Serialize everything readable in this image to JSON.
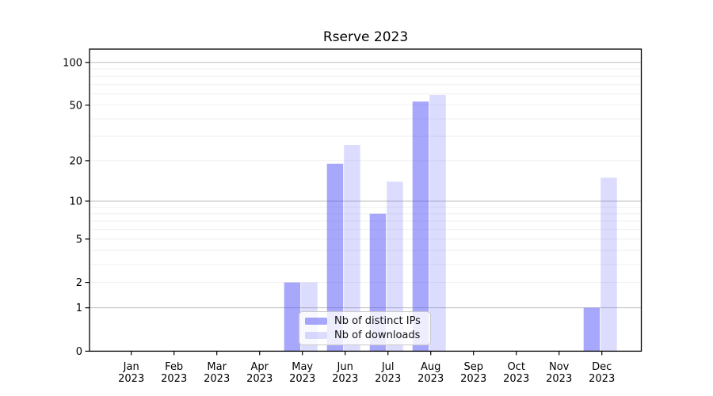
{
  "page": {
    "background": "#ffffff"
  },
  "chart_data": {
    "type": "bar",
    "title": "Rserve 2023",
    "categories": [
      "Jan",
      "Feb",
      "Mar",
      "Apr",
      "May",
      "Jun",
      "Jul",
      "Aug",
      "Sep",
      "Oct",
      "Nov",
      "Dec"
    ],
    "x_year_label": "2023",
    "series": [
      {
        "name": "Nb of distinct IPs",
        "values": [
          0,
          0,
          0,
          0,
          2,
          19,
          8,
          53,
          0,
          0,
          0,
          1
        ],
        "color": "#5050f8",
        "fill_opacity": 0.5,
        "appears_as": "#a8a8fb"
      },
      {
        "name": "Nb of downloads",
        "values": [
          0,
          0,
          0,
          0,
          2,
          26,
          14,
          59,
          0,
          0,
          0,
          15
        ],
        "color": "#5050f8",
        "fill_opacity": 0.2,
        "appears_as": "#dcdcfc"
      }
    ],
    "y_axis": {
      "scale": "log1p",
      "tick_values": [
        0,
        1,
        2,
        5,
        10,
        20,
        50,
        100
      ],
      "major_gridlines": [
        1,
        10,
        100
      ],
      "minor_gridlines": [
        2,
        3,
        4,
        5,
        6,
        7,
        8,
        9,
        20,
        30,
        40,
        50,
        60,
        70,
        80,
        90
      ],
      "range": [
        0,
        125
      ]
    },
    "xlabel": "",
    "ylabel": "",
    "legend_position": "inside-bottom-center",
    "grid": true,
    "colors": {
      "grid_minor": "#efefef",
      "grid_major": "#bdbdbd",
      "axis": "#000000",
      "text": "#000000",
      "legend_border": "#c9c9c9",
      "legend_bg": "rgba(255,255,255,0.8)"
    }
  }
}
